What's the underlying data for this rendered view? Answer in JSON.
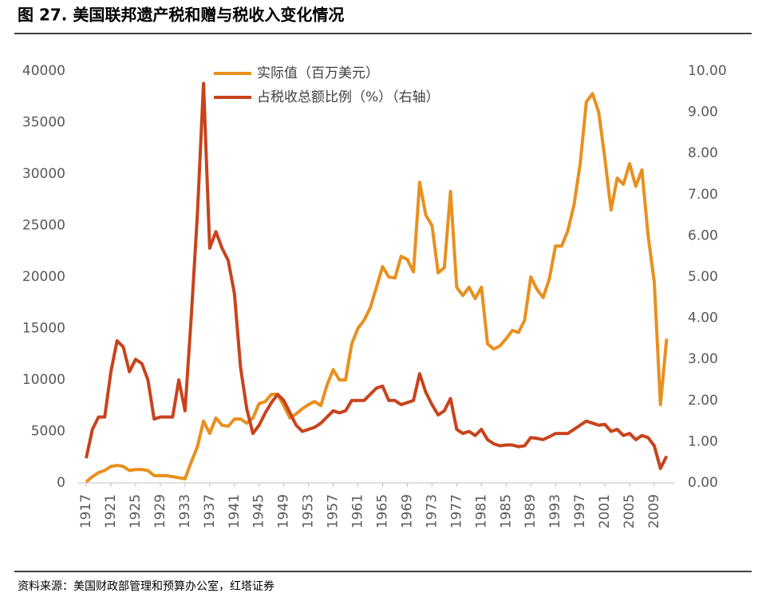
{
  "chart_data": {
    "type": "line",
    "title": "图 27. 美国联邦遗产税和赠与税收入变化情况",
    "source": "资料来源：美国财政部管理和预算办公室，红塔证券",
    "x": [
      1917,
      1918,
      1919,
      1920,
      1921,
      1922,
      1923,
      1924,
      1925,
      1926,
      1927,
      1928,
      1929,
      1930,
      1931,
      1932,
      1933,
      1934,
      1935,
      1936,
      1937,
      1938,
      1939,
      1940,
      1941,
      1942,
      1943,
      1944,
      1945,
      1946,
      1947,
      1948,
      1949,
      1950,
      1951,
      1952,
      1953,
      1954,
      1955,
      1956,
      1957,
      1958,
      1959,
      1960,
      1961,
      1962,
      1963,
      1964,
      1965,
      1966,
      1967,
      1968,
      1969,
      1970,
      1971,
      1972,
      1973,
      1974,
      1975,
      1976,
      1977,
      1978,
      1979,
      1980,
      1981,
      1982,
      1983,
      1984,
      1985,
      1986,
      1987,
      1988,
      1989,
      1990,
      1991,
      1992,
      1993,
      1994,
      1995,
      1996,
      1997,
      1998,
      1999,
      2000,
      2001,
      2002,
      2003,
      2004,
      2005,
      2006,
      2007,
      2008,
      2009,
      2010,
      2011
    ],
    "series": [
      {
        "name": "实际值（百万美元）",
        "color": "#e8901e",
        "axis": "y",
        "values": [
          100,
          600,
          1000,
          1200,
          1600,
          1700,
          1600,
          1200,
          1300,
          1300,
          1200,
          700,
          700,
          700,
          600,
          500,
          400,
          2000,
          3500,
          6000,
          4800,
          6300,
          5600,
          5500,
          6200,
          6200,
          5800,
          6300,
          7700,
          7900,
          8600,
          8600,
          7500,
          6300,
          6700,
          7200,
          7600,
          7900,
          7500,
          9500,
          11000,
          10000,
          10000,
          13500,
          15000,
          15800,
          17000,
          19000,
          21000,
          20000,
          19900,
          22000,
          21700,
          20500,
          29200,
          26000,
          25000,
          20400,
          20900,
          28300,
          19000,
          18200,
          19000,
          17900,
          19000,
          13500,
          13000,
          13300,
          14000,
          14800,
          14600,
          15800,
          20000,
          18800,
          18000,
          19800,
          23000,
          23000,
          24500,
          27000,
          31000,
          37000,
          37800,
          36000,
          31500,
          26500,
          29600,
          29000,
          31000,
          28800,
          30400,
          24000,
          19500,
          7600,
          14000
        ]
      },
      {
        "name": "占税收总额比例（%）（右轴）",
        "color": "#c8431c",
        "axis": "y2",
        "values": [
          0.6,
          1.3,
          1.6,
          1.6,
          2.7,
          3.45,
          3.3,
          2.7,
          3.0,
          2.9,
          2.5,
          1.55,
          1.6,
          1.6,
          1.6,
          2.5,
          1.75,
          4.0,
          6.5,
          9.7,
          5.7,
          6.1,
          5.7,
          5.4,
          4.6,
          2.8,
          1.8,
          1.2,
          1.4,
          1.7,
          1.95,
          2.15,
          2.0,
          1.7,
          1.4,
          1.25,
          1.3,
          1.35,
          1.45,
          1.6,
          1.75,
          1.7,
          1.75,
          2.0,
          2.0,
          2.0,
          2.15,
          2.3,
          2.35,
          2.0,
          2.0,
          1.9,
          1.95,
          2.0,
          2.65,
          2.2,
          1.9,
          1.65,
          1.75,
          2.05,
          1.3,
          1.2,
          1.25,
          1.15,
          1.3,
          1.05,
          0.95,
          0.9,
          0.92,
          0.92,
          0.88,
          0.9,
          1.1,
          1.08,
          1.05,
          1.12,
          1.2,
          1.2,
          1.2,
          1.3,
          1.4,
          1.5,
          1.45,
          1.4,
          1.42,
          1.25,
          1.3,
          1.15,
          1.2,
          1.05,
          1.15,
          1.1,
          0.9,
          0.35,
          0.65
        ]
      }
    ],
    "xlim": [
      1916,
      2012
    ],
    "xticks": [
      1917,
      1921,
      1925,
      1929,
      1933,
      1937,
      1941,
      1945,
      1949,
      1953,
      1957,
      1961,
      1965,
      1969,
      1973,
      1977,
      1981,
      1985,
      1989,
      1993,
      1997,
      2001,
      2005,
      2009
    ],
    "ylim": [
      0,
      40000
    ],
    "yticks": [
      0,
      5000,
      10000,
      15000,
      20000,
      25000,
      30000,
      35000,
      40000
    ],
    "y2lim": [
      0,
      10
    ],
    "y2ticks": [
      {
        "value": 0,
        "label": "0.00"
      },
      {
        "value": 1,
        "label": "1.00"
      },
      {
        "value": 2,
        "label": "2.00"
      },
      {
        "value": 3,
        "label": "3.00"
      },
      {
        "value": 4,
        "label": "4.00"
      },
      {
        "value": 5,
        "label": "5.00"
      },
      {
        "value": 6,
        "label": "6.00"
      },
      {
        "value": 7,
        "label": "7.00"
      },
      {
        "value": 8,
        "label": "8.00"
      },
      {
        "value": 9,
        "label": "9.00"
      },
      {
        "value": 10,
        "label": "10.00"
      }
    ]
  }
}
